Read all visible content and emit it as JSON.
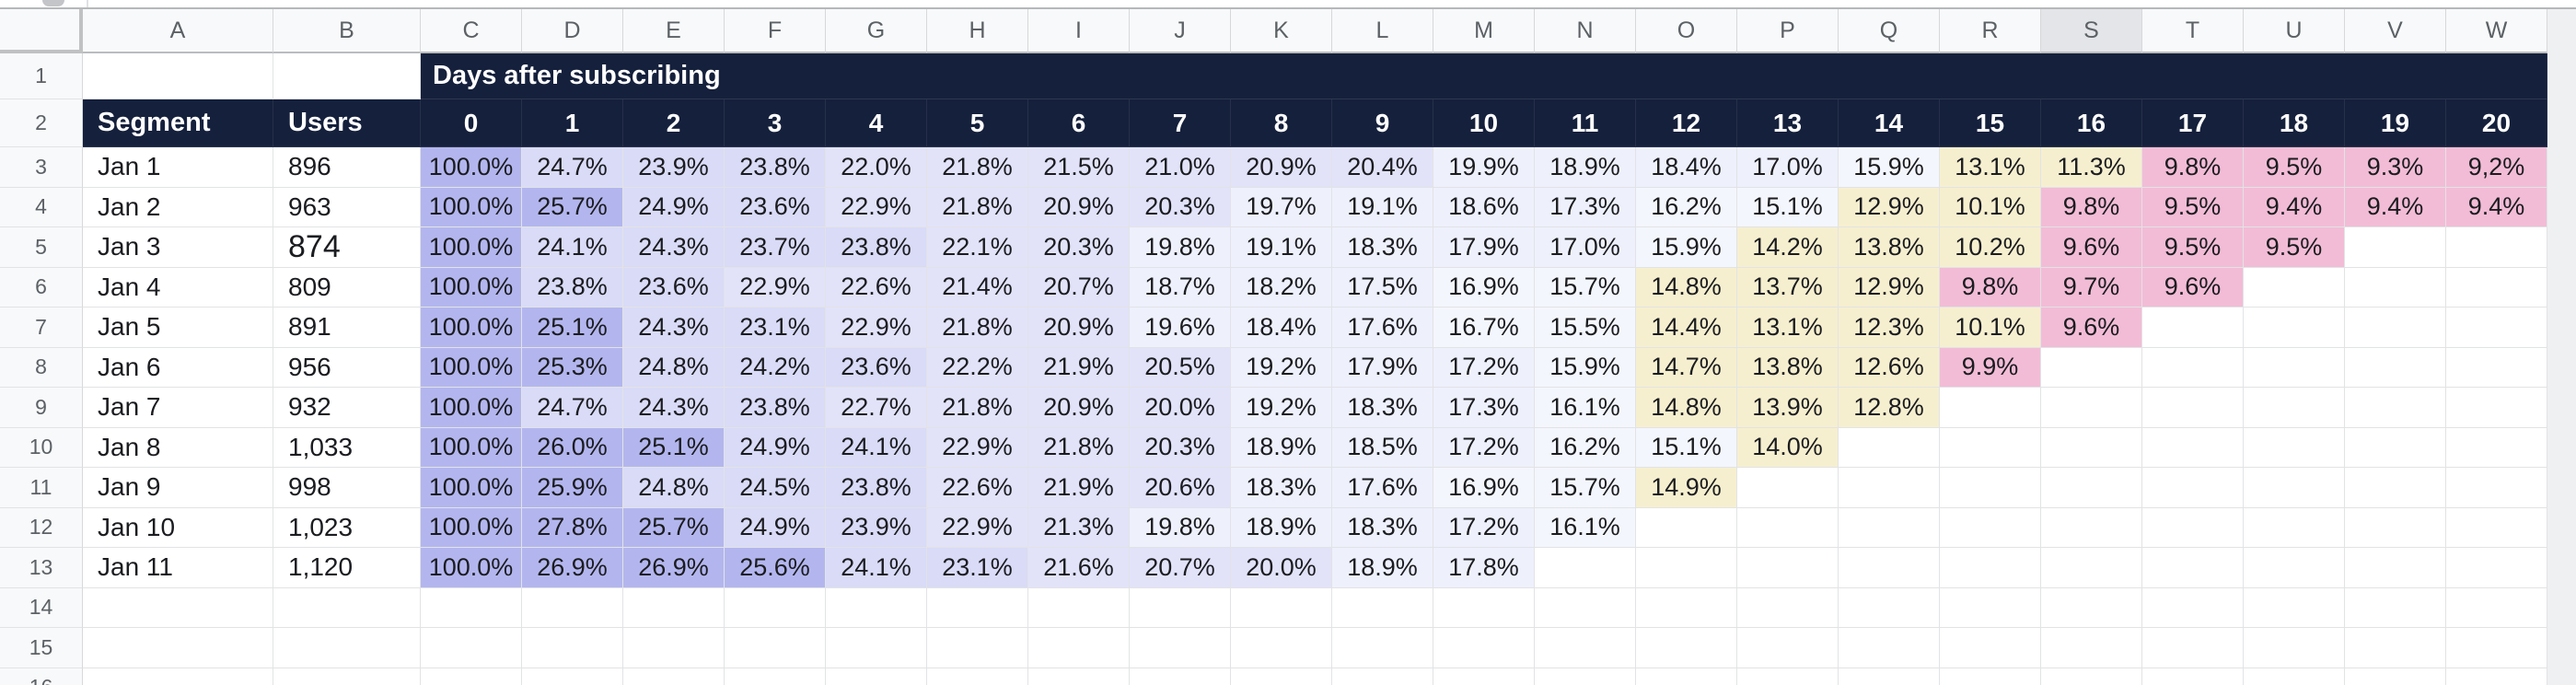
{
  "toolbar": {
    "note": "bottom edge of app toolbar visible as thin strip"
  },
  "colors": {
    "header_navy": "#15203c",
    "header_text": "#ffffff",
    "gutter_bg": "#f8f9fa",
    "gutter_text": "#5c6166",
    "gridline": "#e2e3e5",
    "header_strip_border": "#babcbe",
    "selected_column_header_bg": "#e3e5e8",
    "right_filler": "#eef0f2",
    "cell_text": "#1b1c20"
  },
  "grid": {
    "column_letters": [
      "A",
      "B",
      "C",
      "D",
      "E",
      "F",
      "G",
      "H",
      "I",
      "J",
      "K",
      "L",
      "M",
      "N",
      "O",
      "P",
      "Q",
      "R",
      "S",
      "T",
      "U",
      "V",
      "W"
    ],
    "selected_column_letter": "S",
    "visible_row_numbers": [
      "1",
      "2",
      "3",
      "4",
      "5",
      "6",
      "7",
      "8",
      "9",
      "10",
      "11",
      "12",
      "13",
      "14",
      "15",
      "16"
    ],
    "title_cell": "Days after subscribing",
    "segment_header": "Segment",
    "users_header": "Users",
    "day_headers": [
      "0",
      "1",
      "2",
      "3",
      "4",
      "5",
      "6",
      "7",
      "8",
      "9",
      "10",
      "11",
      "12",
      "13",
      "14",
      "15",
      "16",
      "17",
      "18",
      "19",
      "20"
    ],
    "cohorts": [
      {
        "segment": "Jan 1",
        "users": "896",
        "users_large": false,
        "values": [
          "100.0%",
          "24.7%",
          "23.9%",
          "23.8%",
          "22.0%",
          "21.8%",
          "21.5%",
          "21.0%",
          "20.9%",
          "20.4%",
          "19.9%",
          "18.9%",
          "18.4%",
          "17.0%",
          "15.9%",
          "13.1%",
          "11.3%",
          "9.8%",
          "9.5%",
          "9.3%",
          "9,2%"
        ]
      },
      {
        "segment": "Jan 2",
        "users": "963",
        "users_large": false,
        "values": [
          "100.0%",
          "25.7%",
          "24.9%",
          "23.6%",
          "22.9%",
          "21.8%",
          "20.9%",
          "20.3%",
          "19.7%",
          "19.1%",
          "18.6%",
          "17.3%",
          "16.2%",
          "15.1%",
          "12.9%",
          "10.1%",
          "9.8%",
          "9.5%",
          "9.4%",
          "9.4%",
          "9.4%"
        ]
      },
      {
        "segment": "Jan 3",
        "users": "874",
        "users_large": true,
        "values": [
          "100.0%",
          "24.1%",
          "24.3%",
          "23.7%",
          "23.8%",
          "22.1%",
          "20.3%",
          "19.8%",
          "19.1%",
          "18.3%",
          "17.9%",
          "17.0%",
          "15.9%",
          "14.2%",
          "13.8%",
          "10.2%",
          "9.6%",
          "9.5%",
          "9.5%"
        ]
      },
      {
        "segment": "Jan 4",
        "users": "809",
        "users_large": false,
        "values": [
          "100.0%",
          "23.8%",
          "23.6%",
          "22.9%",
          "22.6%",
          "21.4%",
          "20.7%",
          "18.7%",
          "18.2%",
          "17.5%",
          "16.9%",
          "15.7%",
          "14.8%",
          "13.7%",
          "12.9%",
          "9.8%",
          "9.7%",
          "9.6%"
        ]
      },
      {
        "segment": "Jan 5",
        "users": "891",
        "users_large": false,
        "values": [
          "100.0%",
          "25.1%",
          "24.3%",
          "23.1%",
          "22.9%",
          "21.8%",
          "20.9%",
          "19.6%",
          "18.4%",
          "17.6%",
          "16.7%",
          "15.5%",
          "14.4%",
          "13.1%",
          "12.3%",
          "10.1%",
          "9.6%"
        ]
      },
      {
        "segment": "Jan 6",
        "users": "956",
        "users_large": false,
        "values": [
          "100.0%",
          "25.3%",
          "24.8%",
          "24.2%",
          "23.6%",
          "22.2%",
          "21.9%",
          "20.5%",
          "19.2%",
          "17.9%",
          "17.2%",
          "15.9%",
          "14.7%",
          "13.8%",
          "12.6%",
          "9.9%"
        ]
      },
      {
        "segment": "Jan 7",
        "users": "932",
        "users_large": false,
        "values": [
          "100.0%",
          "24.7%",
          "24.3%",
          "23.8%",
          "22.7%",
          "21.8%",
          "20.9%",
          "20.0%",
          "19.2%",
          "18.3%",
          "17.3%",
          "16.1%",
          "14.8%",
          "13.9%",
          "12.8%"
        ]
      },
      {
        "segment": "Jan 8",
        "users": "1,033",
        "users_large": false,
        "values": [
          "100.0%",
          "26.0%",
          "25.1%",
          "24.9%",
          "24.1%",
          "22.9%",
          "21.8%",
          "20.3%",
          "18.9%",
          "18.5%",
          "17.2%",
          "16.2%",
          "15.1%",
          "14.0%"
        ]
      },
      {
        "segment": "Jan 9",
        "users": "998",
        "users_large": false,
        "values": [
          "100.0%",
          "25.9%",
          "24.8%",
          "24.5%",
          "23.8%",
          "22.6%",
          "21.9%",
          "20.6%",
          "18.3%",
          "17.6%",
          "16.9%",
          "15.7%",
          "14.9%"
        ]
      },
      {
        "segment": "Jan 10",
        "users": "1,023",
        "users_large": false,
        "values": [
          "100.0%",
          "27.8%",
          "25.7%",
          "24.9%",
          "23.9%",
          "22.9%",
          "21.3%",
          "19.8%",
          "18.9%",
          "18.3%",
          "17.2%",
          "16.1%"
        ]
      },
      {
        "segment": "Jan 11",
        "users": "1,120",
        "users_large": false,
        "values": [
          "100.0%",
          "26.9%",
          "26.9%",
          "25.6%",
          "24.1%",
          "23.1%",
          "21.6%",
          "20.7%",
          "20.0%",
          "18.9%",
          "17.8%"
        ]
      }
    ],
    "empty_bottom_row_numbers": [
      "14",
      "15",
      "16"
    ],
    "color_scale": [
      {
        "min": 25,
        "color": "#b3b6ee"
      },
      {
        "min": 23,
        "color": "#d9dbf7"
      },
      {
        "min": 20,
        "color": "#e2e3f9"
      },
      {
        "min": 17,
        "color": "#eef0fc"
      },
      {
        "min": 15,
        "color": "#f4f6fd"
      },
      {
        "min": 10,
        "color": "#f6efcf"
      },
      {
        "min": 0,
        "color": "#f2bcd6"
      }
    ]
  }
}
